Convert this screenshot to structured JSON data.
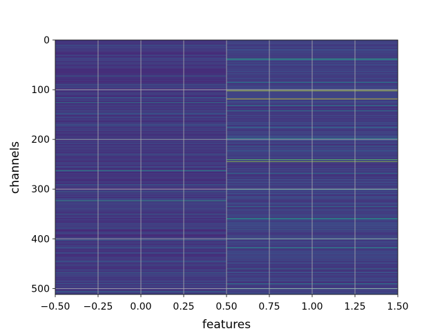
{
  "chart_data": {
    "type": "heatmap",
    "title": "",
    "xlabel": "features",
    "ylabel": "channels",
    "xlim": [
      -0.5,
      1.5
    ],
    "ylim": [
      512,
      0
    ],
    "y_inverted": true,
    "grid": true,
    "colormap": "viridis",
    "n_rows": 512,
    "n_cols": 2,
    "x_ticks": [
      -0.5,
      -0.25,
      0.0,
      0.25,
      0.5,
      0.75,
      1.0,
      1.25,
      1.5
    ],
    "x_tick_labels": [
      "−0.50",
      "−0.25",
      "0.00",
      "0.25",
      "0.50",
      "0.75",
      "1.00",
      "1.25",
      "1.50"
    ],
    "y_ticks": [
      0,
      100,
      200,
      300,
      400,
      500
    ],
    "y_tick_labels": [
      "0",
      "100",
      "200",
      "300",
      "400",
      "500"
    ],
    "columns": [
      {
        "feature": 0,
        "base_value": 0.13,
        "highlights": [
          {
            "row": 10,
            "value": 0.3
          },
          {
            "row": 48,
            "value": 0.28
          },
          {
            "row": 72,
            "value": 0.4
          },
          {
            "row": 90,
            "value": 0.3
          },
          {
            "row": 115,
            "value": 0.35
          },
          {
            "row": 125,
            "value": 0.45
          },
          {
            "row": 148,
            "value": 0.32
          },
          {
            "row": 170,
            "value": 0.3
          },
          {
            "row": 200,
            "value": 0.35
          },
          {
            "row": 230,
            "value": 0.3
          },
          {
            "row": 262,
            "value": 0.55
          },
          {
            "row": 290,
            "value": 0.3
          },
          {
            "row": 305,
            "value": 0.38
          },
          {
            "row": 323,
            "value": 0.6
          },
          {
            "row": 350,
            "value": 0.3
          },
          {
            "row": 378,
            "value": 0.32
          },
          {
            "row": 402,
            "value": 0.35
          },
          {
            "row": 418,
            "value": 0.3
          },
          {
            "row": 445,
            "value": 0.3
          },
          {
            "row": 468,
            "value": 0.35
          },
          {
            "row": 490,
            "value": 0.3
          },
          {
            "row": 505,
            "value": 0.35
          }
        ]
      },
      {
        "feature": 1,
        "base_value": 0.15,
        "highlights": [
          {
            "row": 37,
            "value": 0.6
          },
          {
            "row": 39,
            "value": 0.55
          },
          {
            "row": 85,
            "value": 0.45
          },
          {
            "row": 100,
            "value": 0.75
          },
          {
            "row": 102,
            "value": 0.9
          },
          {
            "row": 118,
            "value": 0.95
          },
          {
            "row": 131,
            "value": 0.5
          },
          {
            "row": 142,
            "value": 0.45
          },
          {
            "row": 175,
            "value": 0.35
          },
          {
            "row": 198,
            "value": 0.55
          },
          {
            "row": 213,
            "value": 0.4
          },
          {
            "row": 240,
            "value": 0.75
          },
          {
            "row": 244,
            "value": 0.85
          },
          {
            "row": 268,
            "value": 0.4
          },
          {
            "row": 300,
            "value": 0.55
          },
          {
            "row": 335,
            "value": 0.4
          },
          {
            "row": 358,
            "value": 0.55
          },
          {
            "row": 360,
            "value": 0.5
          },
          {
            "row": 380,
            "value": 0.35
          },
          {
            "row": 400,
            "value": 0.5
          },
          {
            "row": 418,
            "value": 0.55
          },
          {
            "row": 460,
            "value": 0.4
          },
          {
            "row": 490,
            "value": 0.45
          },
          {
            "row": 500,
            "value": 0.55
          }
        ]
      }
    ]
  }
}
